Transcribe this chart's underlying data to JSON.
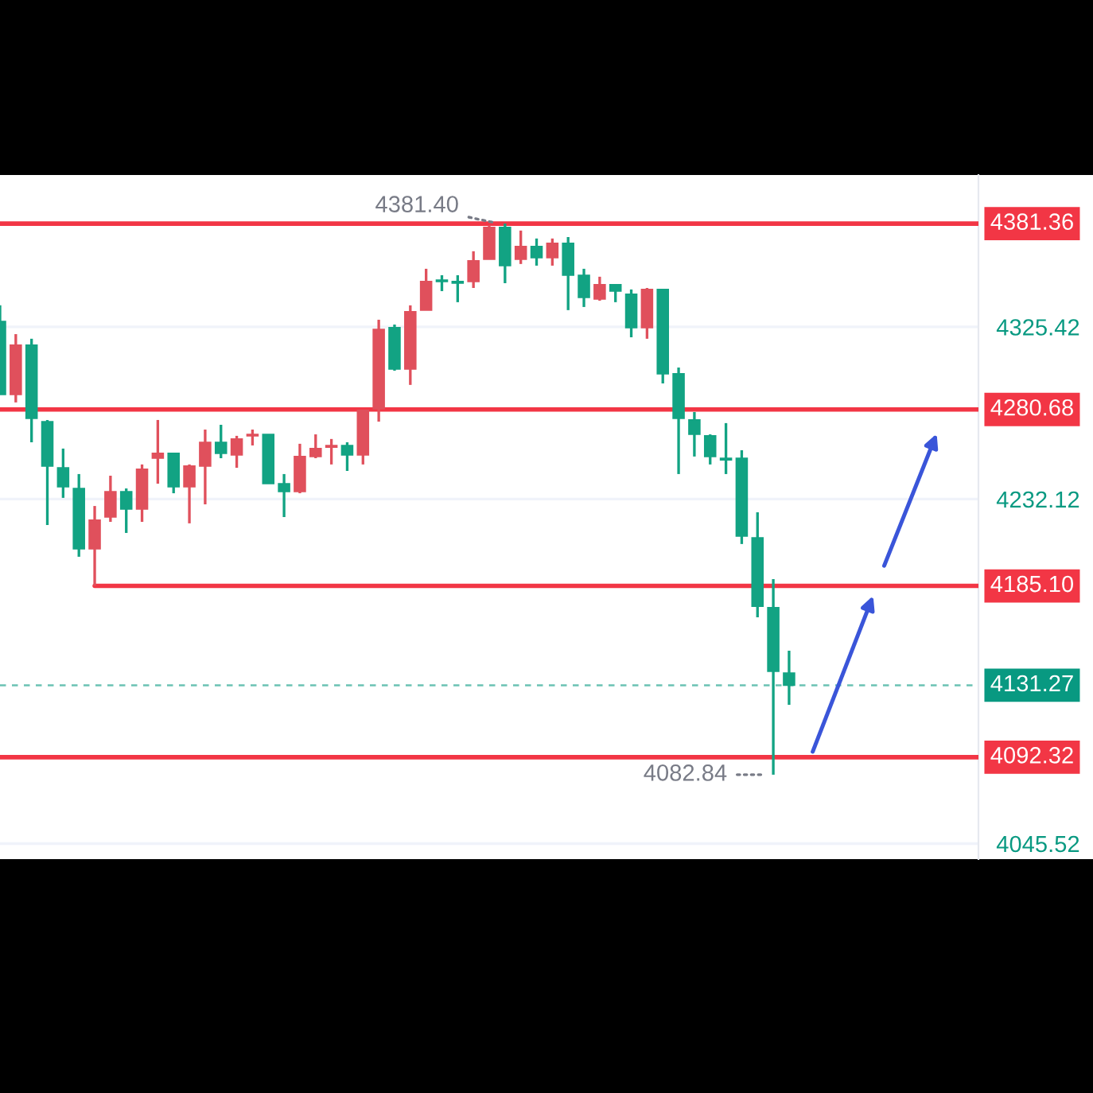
{
  "chart_data": {
    "type": "candlestick",
    "categories": [
      null,
      null,
      null,
      null,
      null,
      null,
      null,
      null,
      null,
      null,
      null,
      null,
      null,
      null,
      null,
      null,
      null,
      null,
      null,
      null,
      null,
      null,
      null,
      null,
      null,
      null,
      null,
      null,
      null,
      null,
      null,
      null,
      null,
      null,
      null,
      null,
      null,
      null,
      null,
      null,
      null,
      null,
      null,
      null,
      null,
      null,
      null,
      null,
      null,
      null,
      null,
      null,
      null,
      null,
      null,
      null,
      null,
      null,
      null,
      null,
      null,
      null
    ],
    "ohlc": [
      [
        4328.4,
        4337.1,
        4288.8,
        4288.8
      ],
      [
        4288.8,
        4321.5,
        4284.5,
        4315.5
      ],
      [
        4315.5,
        4319.0,
        4262.9,
        4275.9
      ],
      [
        4274.1,
        4275.0,
        4218.1,
        4250.0
      ],
      [
        4249.1,
        4259.5,
        4232.8,
        4238.8
      ],
      [
        4237.9,
        4245.7,
        4200.9,
        4205.2
      ],
      [
        4205.2,
        4228.4,
        4185.1,
        4220.7
      ],
      [
        4222.4,
        4244.8,
        4219.8,
        4236.2
      ],
      [
        4236.2,
        4237.9,
        4213.8,
        4226.7
      ],
      [
        4226.7,
        4250.9,
        4219.8,
        4248.3
      ],
      [
        4254.3,
        4275.0,
        4240.5,
        4256.9
      ],
      [
        4256.9,
        4256.9,
        4235.3,
        4238.8
      ],
      [
        4238.8,
        4250.9,
        4219.0,
        4250.0
      ],
      [
        4250.0,
        4269.8,
        4229.3,
        4262.9
      ],
      [
        4262.9,
        4272.4,
        4254.3,
        4256.9
      ],
      [
        4256.0,
        4266.4,
        4249.1,
        4264.7
      ],
      [
        4266.4,
        4269.8,
        4261.2,
        4267.2
      ],
      [
        4267.2,
        4267.2,
        4240.5,
        4240.5
      ],
      [
        4240.5,
        4245.7,
        4222.4,
        4236.2
      ],
      [
        4236.2,
        4262.1,
        4235.3,
        4255.2
      ],
      [
        4255.2,
        4267.2,
        4254.3,
        4259.5
      ],
      [
        4260.3,
        4264.7,
        4250.9,
        4261.2
      ],
      [
        4261.2,
        4262.9,
        4247.4,
        4256.0
      ],
      [
        4256.0,
        4280.2,
        4250.9,
        4280.2
      ],
      [
        4281.0,
        4329.3,
        4274.1,
        4324.1
      ],
      [
        4325.0,
        4326.7,
        4301.7,
        4302.6
      ],
      [
        4302.6,
        4337.1,
        4294.0,
        4333.6
      ],
      [
        4334.5,
        4356.9,
        4334.5,
        4350.0
      ],
      [
        4350.8,
        4353.4,
        4344.8,
        4350.0
      ],
      [
        4350.0,
        4353.4,
        4338.8,
        4349.1
      ],
      [
        4350.0,
        4366.4,
        4346.5,
        4361.2
      ],
      [
        4362.1,
        4380.5,
        4362.1,
        4379.3
      ],
      [
        4379.3,
        4381.4,
        4349.1,
        4358.6
      ],
      [
        4362.1,
        4377.6,
        4359.5,
        4369.0
      ],
      [
        4369.0,
        4373.3,
        4358.6,
        4362.9
      ],
      [
        4362.9,
        4373.3,
        4358.6,
        4370.7
      ],
      [
        4370.7,
        4374.1,
        4334.5,
        4353.4
      ],
      [
        4353.4,
        4356.9,
        4336.2,
        4341.4
      ],
      [
        4340.5,
        4352.6,
        4339.6,
        4348.3
      ],
      [
        4348.3,
        4348.3,
        4338.8,
        4344.8
      ],
      [
        4343.1,
        4345.7,
        4319.8,
        4325.0
      ],
      [
        4325.0,
        4346.5,
        4319.0,
        4345.7
      ],
      [
        4345.7,
        4345.7,
        4294.8,
        4300.0
      ],
      [
        4300.0,
        4303.4,
        4245.7,
        4275.9
      ],
      [
        4275.0,
        4279.3,
        4255.2,
        4267.2
      ],
      [
        4266.4,
        4267.2,
        4250.9,
        4255.2
      ],
      [
        4254.3,
        4273.3,
        4245.7,
        4253.4
      ],
      [
        4254.3,
        4258.6,
        4207.8,
        4212.1
      ],
      [
        4211.2,
        4225.0,
        4168.1,
        4174.1
      ],
      [
        4173.3,
        4188.8,
        4082.84,
        4138.8
      ],
      [
        4137.9,
        4150.0,
        4120.7,
        4131.27
      ],
      null,
      null,
      null,
      null,
      null,
      null,
      null,
      null,
      null,
      null,
      null
    ],
    "colors": [
      "#12a383",
      "#e0505c",
      "#12a383",
      "#12a383",
      "#12a383",
      "#12a383",
      "#e0505c",
      "#e0505c",
      "#12a383",
      "#e0505c",
      "#e0505c",
      "#12a383",
      "#e0505c",
      "#e0505c",
      "#12a383",
      "#e0505c",
      "#e0505c",
      "#12a383",
      "#12a383",
      "#e0505c",
      "#e0505c",
      "#e0505c",
      "#12a383",
      "#e0505c",
      "#e0505c",
      "#12a383",
      "#e0505c",
      "#e0505c",
      "#12a383",
      "#12a383",
      "#e0505c",
      "#e0505c",
      "#12a383",
      "#e0505c",
      "#12a383",
      "#e0505c",
      "#12a383",
      "#12a383",
      "#e0505c",
      "#12a383",
      "#12a383",
      "#e0505c",
      "#12a383",
      "#12a383",
      "#12a383",
      "#12a383",
      "#12a383",
      "#12a383",
      "#12a383",
      "#12a383",
      "#12a383",
      null,
      null,
      null,
      null,
      null,
      null,
      null,
      null,
      null,
      null,
      null
    ],
    "ylim": [
      4037.1,
      4407.7
    ],
    "yticks": [
      4325.42,
      4232.12,
      4045.52
    ],
    "grid": "y",
    "tick_labels": "y",
    "ref_lines": [
      {
        "axis": "y",
        "value": 4381.36,
        "label": "4381.36",
        "color": "#f23645",
        "line_style": "solid"
      },
      {
        "axis": "y",
        "value": 4280.68,
        "label": "4280.68",
        "color": "#f23645",
        "line_style": "solid"
      },
      {
        "axis": "y",
        "value": 4185.1,
        "label": "4185.10",
        "color": "#f23645",
        "line_style": "solid"
      },
      {
        "axis": "y",
        "value": 4131.27,
        "label": "4131.27",
        "color": "#089981",
        "line_style": "dashed"
      },
      {
        "axis": "y",
        "value": 4092.32,
        "label": "4092.32",
        "color": "#f23645",
        "line_style": "solid"
      }
    ],
    "annotations": [
      {
        "text": "4381.40",
        "y": 4381.4
      },
      "4082.84"
    ]
  }
}
